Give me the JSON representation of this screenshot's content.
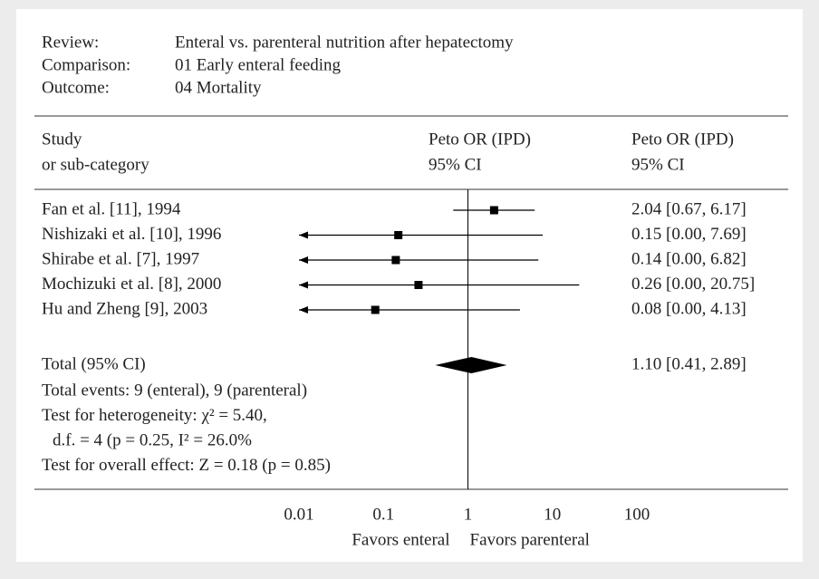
{
  "header": [
    {
      "label": "Review:",
      "text": "Enteral vs. parenteral nutrition after hepatectomy"
    },
    {
      "label": "Comparison:",
      "text": "01 Early enteral feeding"
    },
    {
      "label": "Outcome:",
      "text": "04 Mortality"
    }
  ],
  "chart_data": {
    "type": "forest",
    "columns": {
      "study": [
        "Study",
        "or sub-category"
      ],
      "plot": [
        "Peto OR (IPD)",
        "95% CI"
      ],
      "estimate": [
        "Peto OR (IPD)",
        "95% CI"
      ]
    },
    "studies": [
      "Fan et al. [11], 1994",
      "Nishizaki et al. [10], 1996",
      "Shirabe et al. [7], 1997",
      "Mochizuki et al. [8], 2000",
      "Hu and Zheng [9], 2003"
    ],
    "values": [
      2.04,
      0.15,
      0.14,
      0.26,
      0.08
    ],
    "lower": [
      0.67,
      0.0,
      0.0,
      0.0,
      0.0
    ],
    "upper": [
      6.17,
      7.69,
      6.82,
      20.75,
      4.13
    ],
    "value_labels": [
      "2.04 [0.67, 6.17]",
      "0.15 [0.00, 7.69]",
      "0.14 [0.00, 6.82]",
      "0.26 [0.00, 20.75]",
      "0.08 [0.00, 4.13]"
    ],
    "total": {
      "label": "Total (95% CI)",
      "value": 1.1,
      "lower": 0.41,
      "upper": 2.89,
      "value_label": "1.10 [0.41, 2.89]"
    },
    "notes": [
      "Total events: 9 (enteral), 9 (parenteral)",
      "Test for heterogeneity: χ² = 5.40,",
      "d.f. = 4 (p = 0.25, I² = 26.0%",
      "Test for overall effect: Z = 0.18 (p = 0.85)"
    ],
    "xlim": [
      0.01,
      100
    ],
    "xticks": [
      0.01,
      0.1,
      1,
      10,
      100
    ],
    "log_scale": true,
    "xlabels": [
      "Favors enteral",
      "Favors parenteral"
    ],
    "color": "#000000"
  }
}
